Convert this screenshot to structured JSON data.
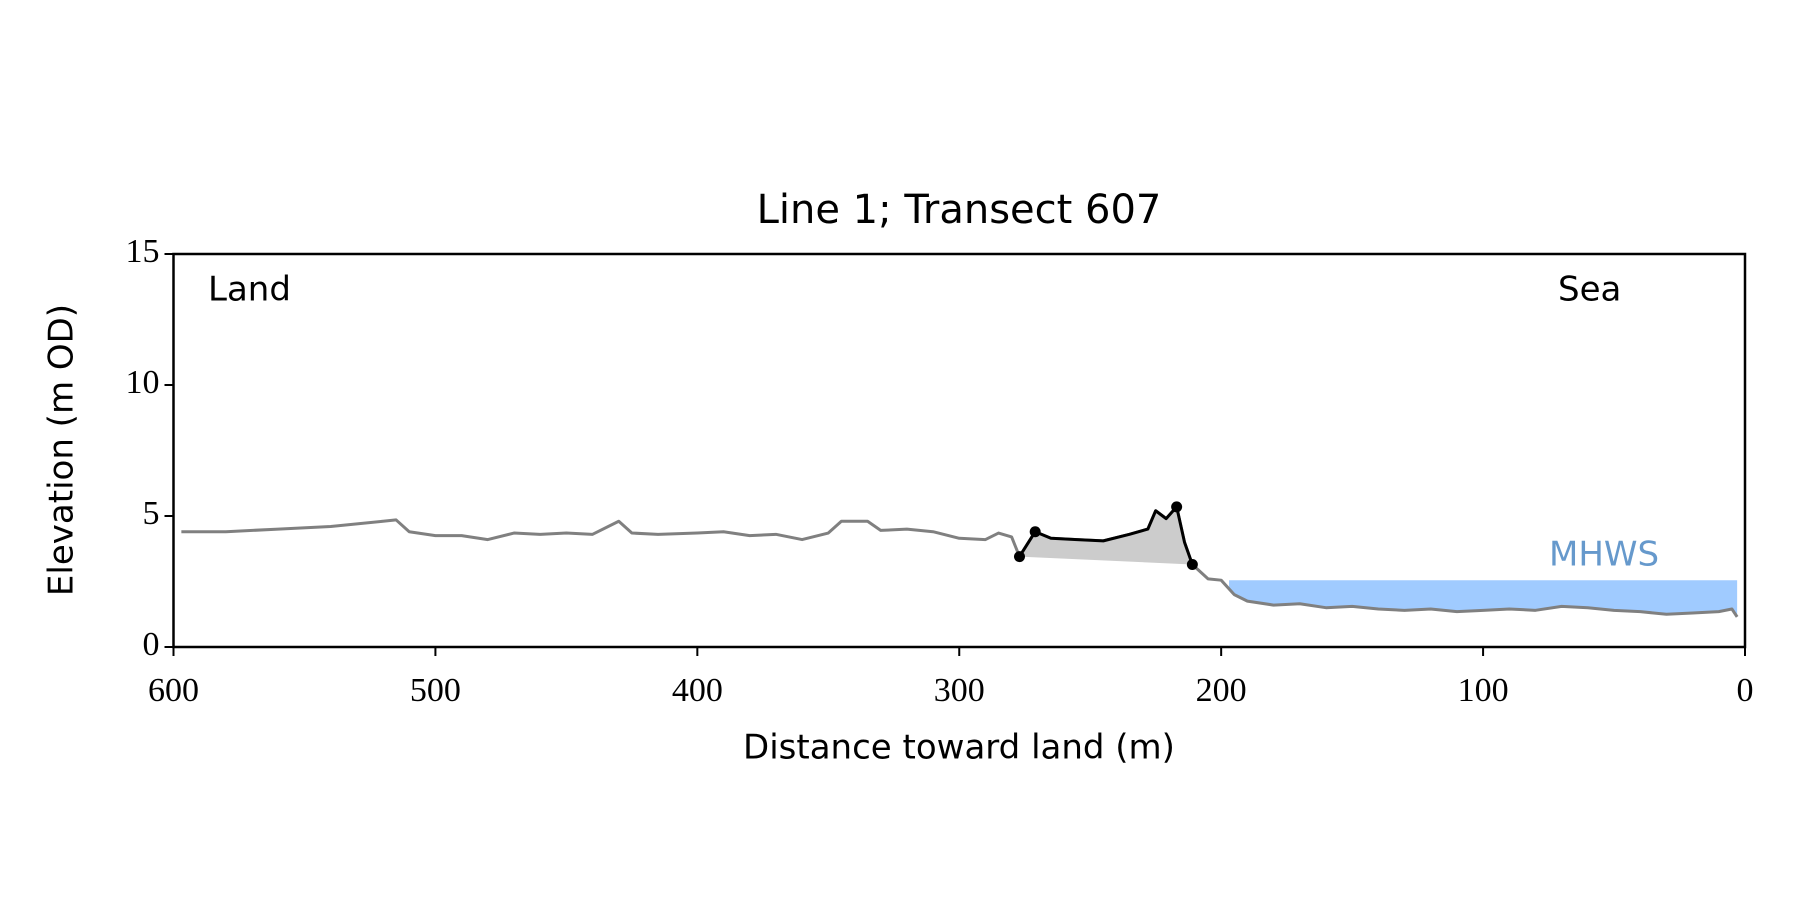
{
  "chart_data": {
    "type": "line",
    "title": "Line 1; Transect 607",
    "xlabel": "Distance toward land (m)",
    "ylabel": "Elevation (m OD)",
    "xlim": [
      600,
      0
    ],
    "xticks": [
      600,
      500,
      400,
      300,
      200,
      100,
      0
    ],
    "ylim": [
      0,
      15
    ],
    "yticks": [
      0,
      5,
      10,
      15
    ],
    "annotations": [
      "Land",
      "Sea"
    ],
    "mhws": {
      "label": "MHWS",
      "value": 2.55,
      "x": [
        197,
        3
      ],
      "color": "#a0cbff",
      "label_color": "#6699cc"
    },
    "series": [
      {
        "color": "#808080",
        "style": "line",
        "x": [
          597,
          580,
          560,
          540,
          520,
          515,
          510,
          500,
          490,
          480,
          470,
          460,
          450,
          440,
          430,
          425,
          415,
          400,
          390,
          380,
          370,
          360,
          350,
          345,
          335,
          330,
          320,
          310,
          300,
          290,
          285,
          280,
          277,
          271,
          265,
          255,
          245,
          235,
          228,
          225,
          221,
          217,
          214,
          211,
          205,
          200,
          195,
          190,
          180,
          170,
          160,
          150,
          140,
          130,
          120,
          110,
          100,
          90,
          80,
          70,
          60,
          50,
          40,
          30,
          20,
          10,
          5,
          3
        ],
        "values": [
          4.4,
          4.4,
          4.5,
          4.6,
          4.8,
          4.85,
          4.4,
          4.25,
          4.25,
          4.1,
          4.35,
          4.3,
          4.35,
          4.3,
          4.8,
          4.35,
          4.3,
          4.35,
          4.4,
          4.25,
          4.3,
          4.1,
          4.35,
          4.8,
          4.8,
          4.45,
          4.5,
          4.4,
          4.15,
          4.1,
          4.35,
          4.2,
          3.45,
          4.4,
          4.15,
          4.1,
          4.05,
          4.3,
          4.5,
          5.2,
          4.9,
          5.35,
          4.0,
          3.15,
          2.6,
          2.55,
          2.0,
          1.75,
          1.6,
          1.65,
          1.5,
          1.55,
          1.45,
          1.4,
          1.45,
          1.35,
          1.4,
          1.45,
          1.4,
          1.55,
          1.5,
          1.4,
          1.35,
          1.25,
          1.3,
          1.35,
          1.45,
          1.15
        ]
      },
      {
        "color": "#000000",
        "style": "line",
        "fill": "#cccccc",
        "x": [
          277,
          271,
          265,
          255,
          245,
          235,
          228,
          225,
          221,
          217,
          214,
          211
        ],
        "values": [
          3.45,
          4.4,
          4.15,
          4.1,
          4.05,
          4.3,
          4.5,
          5.2,
          4.9,
          5.35,
          4.0,
          3.15
        ]
      },
      {
        "color": "#000000",
        "style": "points",
        "x": [
          277,
          271,
          217,
          211
        ],
        "values": [
          3.45,
          4.4,
          5.35,
          3.15
        ]
      }
    ]
  }
}
